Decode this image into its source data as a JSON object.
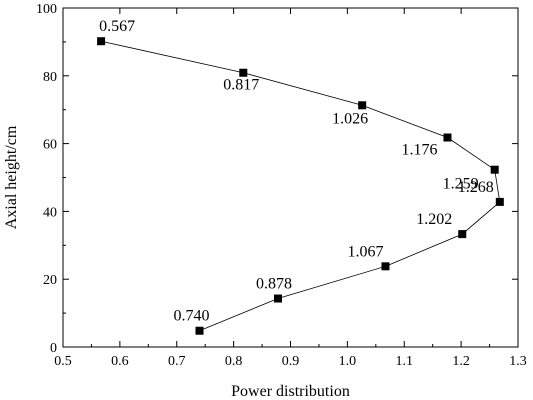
{
  "chart_data": {
    "type": "line",
    "title": "",
    "xlabel": "Power distribution",
    "ylabel": "Axial height/cm",
    "xlim": [
      0.5,
      1.3
    ],
    "ylim": [
      0,
      100
    ],
    "x_ticks": [
      "0.5",
      "0.6",
      "0.7",
      "0.8",
      "0.9",
      "1.0",
      "1.1",
      "1.2",
      "1.3"
    ],
    "y_ticks": [
      "0",
      "20",
      "40",
      "60",
      "80",
      "100"
    ],
    "grid": false,
    "legend": "none",
    "marker": "square",
    "line_color": "#000000",
    "series": [
      {
        "points": [
          {
            "x": 0.567,
            "y": 90.2,
            "label": "0.567"
          },
          {
            "x": 0.817,
            "y": 80.9,
            "label": "0.817"
          },
          {
            "x": 1.026,
            "y": 71.3,
            "label": "1.026"
          },
          {
            "x": 1.176,
            "y": 61.8,
            "label": "1.176"
          },
          {
            "x": 1.259,
            "y": 52.3,
            "label": "1.259"
          },
          {
            "x": 1.268,
            "y": 42.8,
            "label": "1.268"
          },
          {
            "x": 1.202,
            "y": 33.3,
            "label": "1.202"
          },
          {
            "x": 1.067,
            "y": 23.8,
            "label": "1.067"
          },
          {
            "x": 0.878,
            "y": 14.3,
            "label": "0.878"
          },
          {
            "x": 0.74,
            "y": 4.8,
            "label": "0.740"
          }
        ]
      }
    ]
  }
}
